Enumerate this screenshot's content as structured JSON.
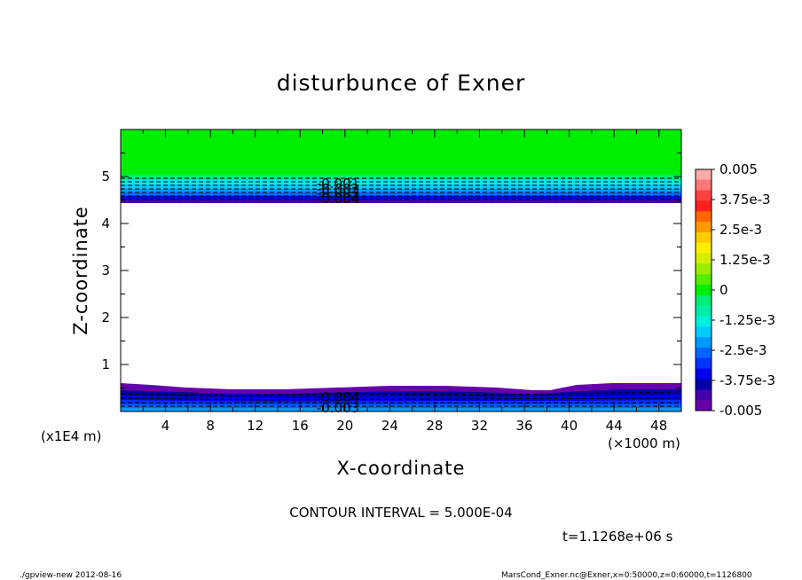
{
  "chart_data": {
    "type": "contour",
    "title": "disturbunce of Exner",
    "xlabel": "X-coordinate",
    "ylabel": "Z-coordinate",
    "x_unit_label": "(×1000 m)",
    "y_unit_label": "(x1E4 m)",
    "x_ticks": [
      "4",
      "8",
      "12",
      "16",
      "20",
      "24",
      "28",
      "32",
      "36",
      "40",
      "44",
      "48"
    ],
    "y_ticks": [
      "1",
      "2",
      "3",
      "4",
      "5"
    ],
    "xlim": [
      0,
      50
    ],
    "ylim": [
      0,
      6
    ],
    "contour_interval_text": "CONTOUR INTERVAL = 5.000E-04",
    "time_text": "t=1.1268e+06 s",
    "colorbar": {
      "labels": [
        "0.005",
        "3.75e-3",
        "2.5e-3",
        "1.25e-3",
        "0",
        "-1.25e-3",
        "-2.5e-3",
        "-3.75e-3",
        "-0.005"
      ],
      "min": -0.005,
      "max": 0.005,
      "colors": [
        "#ffaaaa",
        "#ff7777",
        "#ff4040",
        "#ff2020",
        "#ff6600",
        "#ff9900",
        "#ffcc00",
        "#ffee00",
        "#d4ee00",
        "#99ee00",
        "#55ee00",
        "#00ee00",
        "#00ee77",
        "#00eeaa",
        "#00eedd",
        "#00ccff",
        "#0099ff",
        "#0066ff",
        "#0033ff",
        "#0000ee",
        "#0000aa",
        "#4400aa",
        "#6600aa"
      ]
    },
    "contour_labels_top": [
      "-0.001",
      "-0.002",
      "-0.003",
      "-0.004"
    ],
    "contour_labels_bottom": [
      "-0.004",
      "-0.003"
    ]
  },
  "footer": {
    "left": "./gpview-new  2012-08-16",
    "right": "MarsCond_Exner.nc@Exner,x=0:50000,z=0:60000,t=1126800"
  }
}
